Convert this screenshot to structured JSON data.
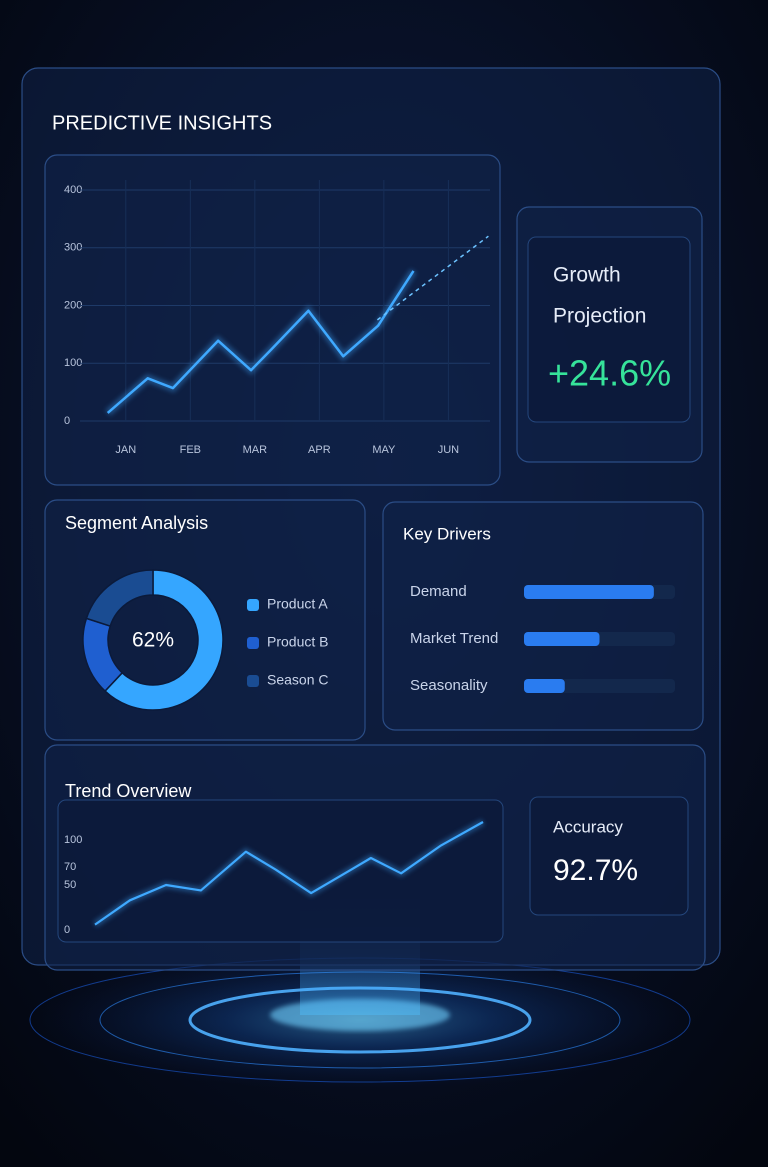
{
  "title": "PREDICTIVE INSIGHTS",
  "cards": {
    "growth": {
      "label_lines": [
        "Growth",
        "Projection"
      ],
      "value": "+24.6%"
    },
    "accuracy": {
      "label": "Accuracy",
      "value": "92.7%"
    }
  },
  "chart_data": [
    {
      "type": "line",
      "xlim": [
        -0.4,
        5.8
      ],
      "xticks": [
        {
          "value": 0,
          "label": "JAN"
        },
        {
          "value": 1,
          "label": "FEB"
        },
        {
          "value": 2,
          "label": "MAR"
        },
        {
          "value": 3,
          "label": "APR"
        },
        {
          "value": 4,
          "label": "MAY"
        },
        {
          "value": 5,
          "label": "JUN"
        }
      ],
      "ylim": [
        0,
        400
      ],
      "yticks": [
        0,
        100,
        200,
        300,
        400
      ],
      "grid": true,
      "series": [
        {
          "color": "#3fa9ff",
          "x": [
            -0.28,
            0.34,
            0.73,
            1.43,
            1.94,
            2.24,
            2.83,
            3.37,
            3.91,
            4.46
          ],
          "values": [
            14,
            74,
            57,
            139,
            88,
            122,
            191,
            112,
            165,
            260
          ]
        },
        {
          "color": "#6cc2ff",
          "dashed": true,
          "x": [
            3.9,
            5.62
          ],
          "values": [
            175,
            320
          ]
        }
      ]
    },
    {
      "type": "donut",
      "title": "Segment Analysis",
      "center_label": "62%",
      "categories": [
        "Product A",
        "Product B",
        "Season C"
      ],
      "values": [
        62,
        18,
        20
      ],
      "colors": [
        "#35a6ff",
        "#1f5fd0",
        "#1a4c92"
      ]
    },
    {
      "type": "hbar",
      "title": "Key Drivers",
      "categories": [
        "Demand",
        "Market Trend",
        "Seasonality"
      ],
      "values": [
        86,
        50,
        27
      ],
      "xlim": [
        0,
        100
      ],
      "color": "#2a7cf0"
    },
    {
      "type": "line",
      "title": "Trend Overview",
      "xlim": [
        0,
        100
      ],
      "ylim": [
        0,
        120
      ],
      "yticks": [
        0,
        50,
        70,
        100
      ],
      "grid": false,
      "series": [
        {
          "color": "#3fa9ff",
          "x": [
            0,
            9,
            18.3,
            27.3,
            38.9,
            46.6,
            55.7,
            66,
            71.1,
            78.9,
            89.2,
            100
          ],
          "values": [
            6,
            33,
            50,
            44,
            87,
            67,
            41,
            67,
            80,
            63,
            94,
            120
          ]
        }
      ]
    }
  ]
}
